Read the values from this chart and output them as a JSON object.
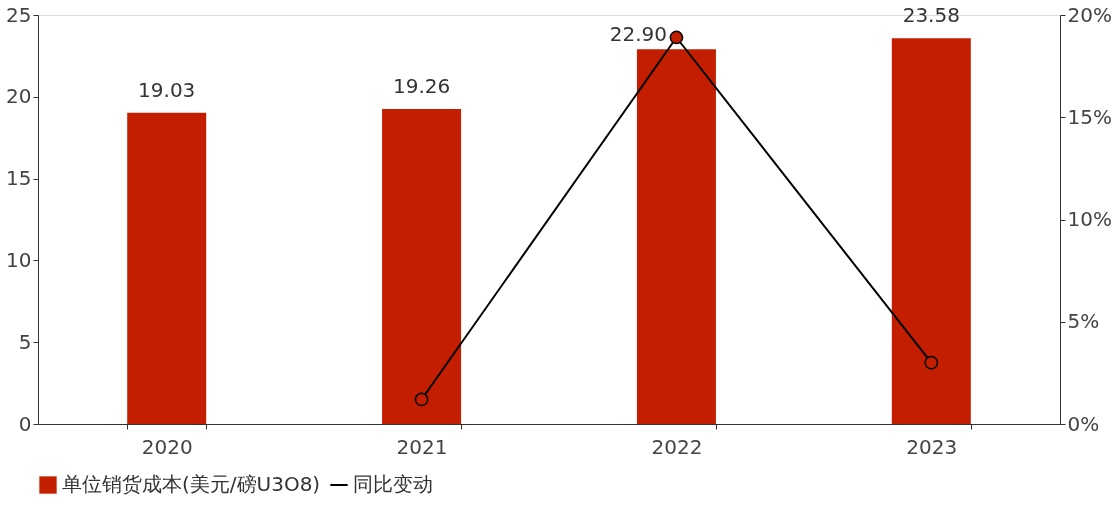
{
  "chart_data": {
    "type": "bar",
    "categories": [
      "2020",
      "2021",
      "2022",
      "2023"
    ],
    "series": [
      {
        "name": "单位销货成本(美元/磅U3O8)",
        "color": "#c41e00",
        "values": [
          19.03,
          19.26,
          22.9,
          23.58
        ],
        "value_labels": [
          "19.03",
          "19.26",
          "22.90",
          "23.58"
        ]
      },
      {
        "name": "同比变动",
        "type": "line",
        "axis": "y2",
        "color": "#000000",
        "marker": "circle",
        "values": [
          null,
          1.2,
          18.9,
          3.0
        ]
      }
    ],
    "ylim": [
      0,
      25
    ],
    "yticks": [
      0,
      5,
      10,
      15,
      20,
      25
    ],
    "y2lim": [
      0,
      20
    ],
    "y2ticks": [
      {
        "value": 0,
        "label": "0%"
      },
      {
        "value": 5,
        "label": "5%"
      },
      {
        "value": 10,
        "label": "10%"
      },
      {
        "value": 15,
        "label": "15%"
      },
      {
        "value": 20,
        "label": "20%"
      }
    ],
    "grid": false,
    "legend": "bottom"
  }
}
